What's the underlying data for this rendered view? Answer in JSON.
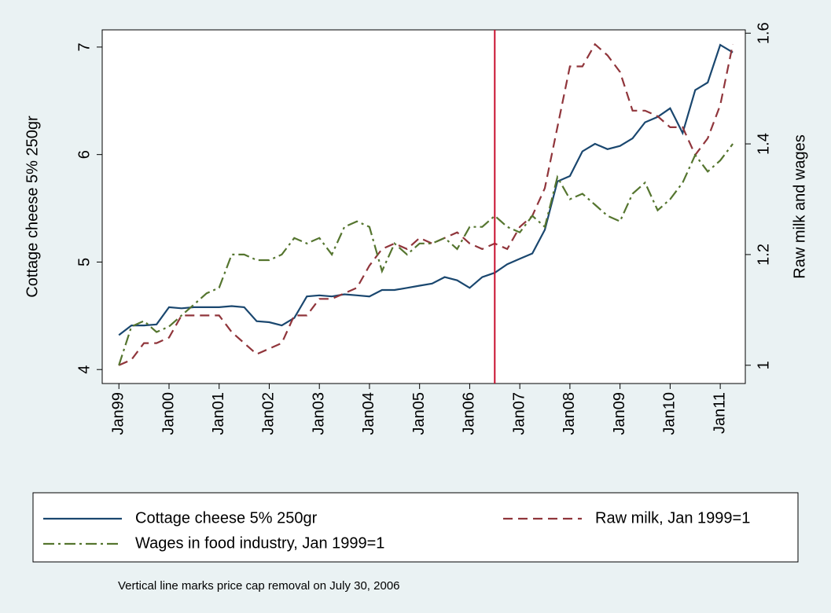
{
  "chart_data": {
    "type": "line",
    "y_label": "Cottage cheese 5% 250gr",
    "y2_label": "Raw milk and wages",
    "note": "Vertical line marks price cap removal on July 30, 2006",
    "x": [
      "1999-01",
      "1999-04",
      "1999-07",
      "1999-10",
      "2000-01",
      "2000-04",
      "2000-07",
      "2000-10",
      "2001-01",
      "2001-04",
      "2001-07",
      "2001-10",
      "2002-01",
      "2002-04",
      "2002-07",
      "2002-10",
      "2003-01",
      "2003-04",
      "2003-07",
      "2003-10",
      "2004-01",
      "2004-04",
      "2004-07",
      "2004-10",
      "2005-01",
      "2005-04",
      "2005-07",
      "2005-10",
      "2006-01",
      "2006-04",
      "2006-07",
      "2006-10",
      "2007-01",
      "2007-04",
      "2007-07",
      "2007-10",
      "2008-01",
      "2008-04",
      "2008-07",
      "2008-10",
      "2009-01",
      "2009-04",
      "2009-07",
      "2009-10",
      "2010-01",
      "2010-04",
      "2010-07",
      "2010-10",
      "2011-01",
      "2011-04"
    ],
    "series": [
      {
        "name": "Cottage cheese 5% 250gr",
        "color": "#1a476f",
        "style": "solid",
        "axis": "y",
        "values": [
          4.32,
          4.41,
          4.41,
          4.42,
          4.58,
          4.57,
          4.58,
          4.58,
          4.58,
          4.59,
          4.58,
          4.45,
          4.44,
          4.41,
          4.48,
          4.68,
          4.69,
          4.68,
          4.7,
          4.69,
          4.68,
          4.74,
          4.74,
          4.76,
          4.78,
          4.8,
          4.86,
          4.83,
          4.76,
          4.86,
          4.9,
          4.98,
          5.03,
          5.08,
          5.3,
          5.75,
          5.8,
          6.03,
          6.1,
          6.05,
          6.08,
          6.15,
          6.3,
          6.35,
          6.43,
          6.2,
          6.6,
          6.67,
          7.02,
          6.95
        ]
      },
      {
        "name": "Raw milk, Jan 1999=1",
        "color": "#90353b",
        "style": "dash",
        "axis": "y2",
        "values": [
          1.0,
          1.01,
          1.04,
          1.04,
          1.05,
          1.09,
          1.09,
          1.09,
          1.09,
          1.06,
          1.04,
          1.02,
          1.03,
          1.04,
          1.09,
          1.09,
          1.12,
          1.12,
          1.13,
          1.14,
          1.18,
          1.21,
          1.22,
          1.21,
          1.23,
          1.22,
          1.23,
          1.24,
          1.22,
          1.21,
          1.22,
          1.21,
          1.25,
          1.27,
          1.32,
          1.43,
          1.54,
          1.54,
          1.58,
          1.56,
          1.53,
          1.46,
          1.46,
          1.45,
          1.43,
          1.43,
          1.38,
          1.41,
          1.47,
          1.58
        ]
      },
      {
        "name": "Wages in food industry, Jan 1999=1",
        "color": "#55752f",
        "style": "dashdot",
        "axis": "y2",
        "values": [
          1.0,
          1.07,
          1.08,
          1.06,
          1.07,
          1.09,
          1.11,
          1.13,
          1.14,
          1.2,
          1.2,
          1.19,
          1.19,
          1.2,
          1.23,
          1.22,
          1.23,
          1.2,
          1.25,
          1.26,
          1.25,
          1.17,
          1.22,
          1.2,
          1.22,
          1.22,
          1.23,
          1.21,
          1.25,
          1.25,
          1.27,
          1.25,
          1.24,
          1.27,
          1.25,
          1.34,
          1.3,
          1.31,
          1.29,
          1.27,
          1.26,
          1.31,
          1.33,
          1.28,
          1.3,
          1.33,
          1.38,
          1.35,
          1.37,
          1.4
        ]
      }
    ],
    "vline": {
      "x": "2006-07",
      "color": "#c8102e"
    },
    "xlim": [
      "1998-09",
      "2011-07"
    ],
    "xticks": [
      {
        "value": "1999-01",
        "label": "Jan99"
      },
      {
        "value": "2000-01",
        "label": "Jan00"
      },
      {
        "value": "2001-01",
        "label": "Jan01"
      },
      {
        "value": "2002-01",
        "label": "Jan02"
      },
      {
        "value": "2003-01",
        "label": "Jan03"
      },
      {
        "value": "2004-01",
        "label": "Jan04"
      },
      {
        "value": "2005-01",
        "label": "Jan05"
      },
      {
        "value": "2006-01",
        "label": "Jan06"
      },
      {
        "value": "2007-01",
        "label": "Jan07"
      },
      {
        "value": "2008-01",
        "label": "Jan08"
      },
      {
        "value": "2009-01",
        "label": "Jan09"
      },
      {
        "value": "2010-01",
        "label": "Jan10"
      },
      {
        "value": "2011-01",
        "label": "Jan11"
      }
    ],
    "ylim": [
      3.87,
      7.16
    ],
    "yticks": [
      4,
      5,
      6,
      7
    ],
    "y2lim": [
      0.967,
      1.606
    ],
    "y2ticks": [
      1,
      1.2,
      1.4,
      1.6
    ]
  }
}
